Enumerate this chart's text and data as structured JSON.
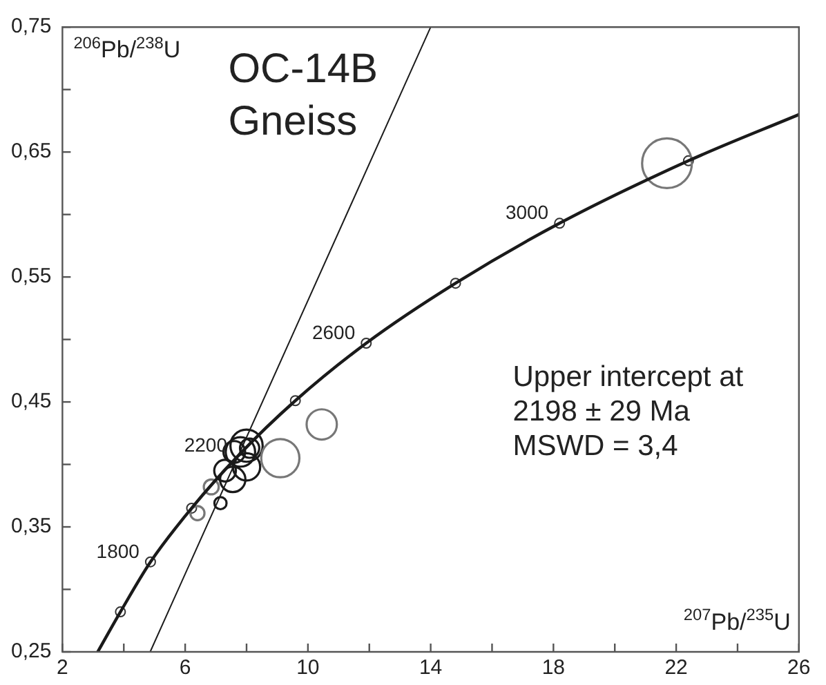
{
  "chart_data": {
    "type": "scatter",
    "title": "OC-14B",
    "subtitle": "Gneiss",
    "xlabel": "$^{207}$Pb/$^{235}$U",
    "ylabel": "$^{206}$Pb/$^{238}$U",
    "xlim": [
      2,
      26
    ],
    "ylim": [
      0.25,
      0.75
    ],
    "xticks": [
      2,
      {
        "value": 4,
        "label": null
      },
      6,
      {
        "value": 8,
        "label": null
      },
      10,
      {
        "value": 12,
        "label": null
      },
      14,
      {
        "value": 16,
        "label": null
      },
      18,
      {
        "value": 20,
        "label": null
      },
      22,
      {
        "value": 24,
        "label": null
      },
      26
    ],
    "yticks": [
      {
        "value": 0.25,
        "label": "0,25"
      },
      {
        "value": 0.3,
        "label": null
      },
      {
        "value": 0.35,
        "label": "0,35"
      },
      {
        "value": 0.4,
        "label": null
      },
      {
        "value": 0.45,
        "label": "0,45"
      },
      {
        "value": 0.5,
        "label": null
      },
      {
        "value": 0.55,
        "label": "0,55"
      },
      {
        "value": 0.6,
        "label": null
      },
      {
        "value": 0.65,
        "label": "0,65"
      },
      {
        "value": 0.7,
        "label": null
      },
      {
        "value": 0.75,
        "label": "0,75"
      }
    ],
    "series": [
      {
        "type": "line",
        "color": "#1a1a1a",
        "x": [
          3.15,
          3.89,
          4.87,
          6.21,
          7.73,
          9.59,
          11.9,
          14.81,
          18.2,
          22.4,
          26
        ],
        "values": [
          0.25,
          0.282,
          0.322,
          0.365,
          0.407,
          0.451,
          0.497,
          0.545,
          0.593,
          0.643,
          0.68
        ]
      },
      {
        "type": "line",
        "color": "#1a1a1a",
        "x": [
          4.86,
          14.0
        ],
        "values": [
          0.25,
          0.75
        ]
      },
      {
        "type": "bubble",
        "color": "#777777",
        "x": [
          21.7,
          10.45,
          9.1,
          6.85,
          6.4
        ],
        "values": [
          0.641,
          0.432,
          0.405,
          0.382,
          0.361
        ],
        "sizes": [
          1,
          0.37,
          0.59,
          0.09,
          0.08
        ]
      },
      {
        "type": "bubble",
        "color": "#1a1a1a",
        "x": [
          7.15,
          7.3,
          7.55,
          7.8,
          8.0,
          8.0,
          7.6,
          8.1
        ],
        "values": [
          0.369,
          0.395,
          0.388,
          0.41,
          0.415,
          0.398,
          0.41,
          0.413
        ],
        "sizes": [
          0.06,
          0.19,
          0.26,
          0.35,
          0.42,
          0.3,
          0.19,
          0.15
        ]
      },
      {
        "type": "scatter",
        "marker": "circle",
        "color": "#333333",
        "x": [
          3.89,
          4.87,
          6.21,
          7.73,
          9.59,
          11.9,
          14.81,
          18.2,
          22.4
        ],
        "values": [
          0.282,
          0.322,
          0.365,
          null,
          0.451,
          0.497,
          0.545,
          0.593,
          0.643
        ]
      }
    ],
    "annotations": [
      {
        "text": "1800",
        "x": 4.87,
        "y": 0.322
      },
      {
        "text": "2200",
        "x": 7.73,
        "y": 0.407
      },
      {
        "text": "2600",
        "x": 11.9,
        "y": 0.497
      },
      {
        "text": "3000",
        "x": 18.2,
        "y": 0.593
      },
      "Upper intercept at",
      "2198 ± 29 Ma",
      "MSWD = 3,4"
    ]
  }
}
